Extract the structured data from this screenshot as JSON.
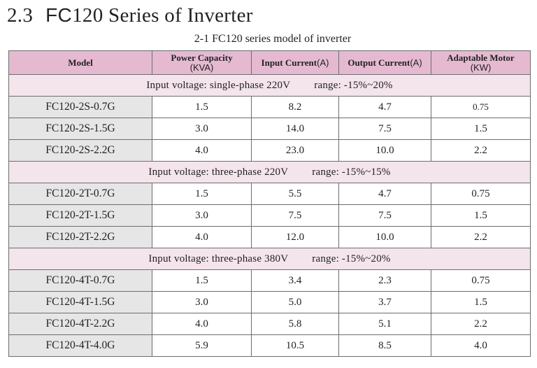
{
  "heading": {
    "number": "2.3",
    "prefix": "FC",
    "rest": "120 Series of Inverter"
  },
  "caption": "2-1   FC120 series model of inverter",
  "table": {
    "headers": [
      {
        "main": "Model",
        "unit": ""
      },
      {
        "main": "Power  Capacity",
        "unit": "(KVA)"
      },
      {
        "main": "Input Current",
        "unit": "(A)"
      },
      {
        "main": "Output Current",
        "unit": "(A)"
      },
      {
        "main": "Adaptable Motor",
        "unit": "(KW)"
      }
    ],
    "groups": [
      {
        "voltage": "Input voltage:  single-phase 220V",
        "range": "range:  -15%~20%",
        "rows": [
          [
            "FC120-2S-0.7G",
            "1.5",
            "8.2",
            "4.7",
            "0.75"
          ],
          [
            "FC120-2S-1.5G",
            "3.0",
            "14.0",
            "7.5",
            "1.5"
          ],
          [
            "FC120-2S-2.2G",
            "4.0",
            "23.0",
            "10.0",
            "2.2"
          ]
        ]
      },
      {
        "voltage": "Input voltage:  three-phase 220V",
        "range": "range:  -15%~15%",
        "rows": [
          [
            "FC120-2T-0.7G",
            "1.5",
            "5.5",
            "4.7",
            "0.75"
          ],
          [
            "FC120-2T-1.5G",
            "3.0",
            "7.5",
            "7.5",
            "1.5"
          ],
          [
            "FC120-2T-2.2G",
            "4.0",
            "12.0",
            "10.0",
            "2.2"
          ]
        ]
      },
      {
        "voltage": "Input voltage:  three-phase 380V",
        "range": "range:  -15%~20%",
        "rows": [
          [
            "FC120-4T-0.7G",
            "1.5",
            "3.4",
            "2.3",
            "0.75"
          ],
          [
            "FC120-4T-1.5G",
            "3.0",
            "5.0",
            "3.7",
            "1.5"
          ],
          [
            "FC120-4T-2.2G",
            "4.0",
            "5.8",
            "5.1",
            "2.2"
          ],
          [
            "FC120-4T-4.0G",
            "5.9",
            "10.5",
            "8.5",
            "4.0"
          ]
        ]
      }
    ]
  },
  "colors": {
    "header_bg": "#e5bad1",
    "group_bg": "#f4e4ec",
    "model_bg": "#e6e6e6",
    "border": "#6d6d6d"
  }
}
